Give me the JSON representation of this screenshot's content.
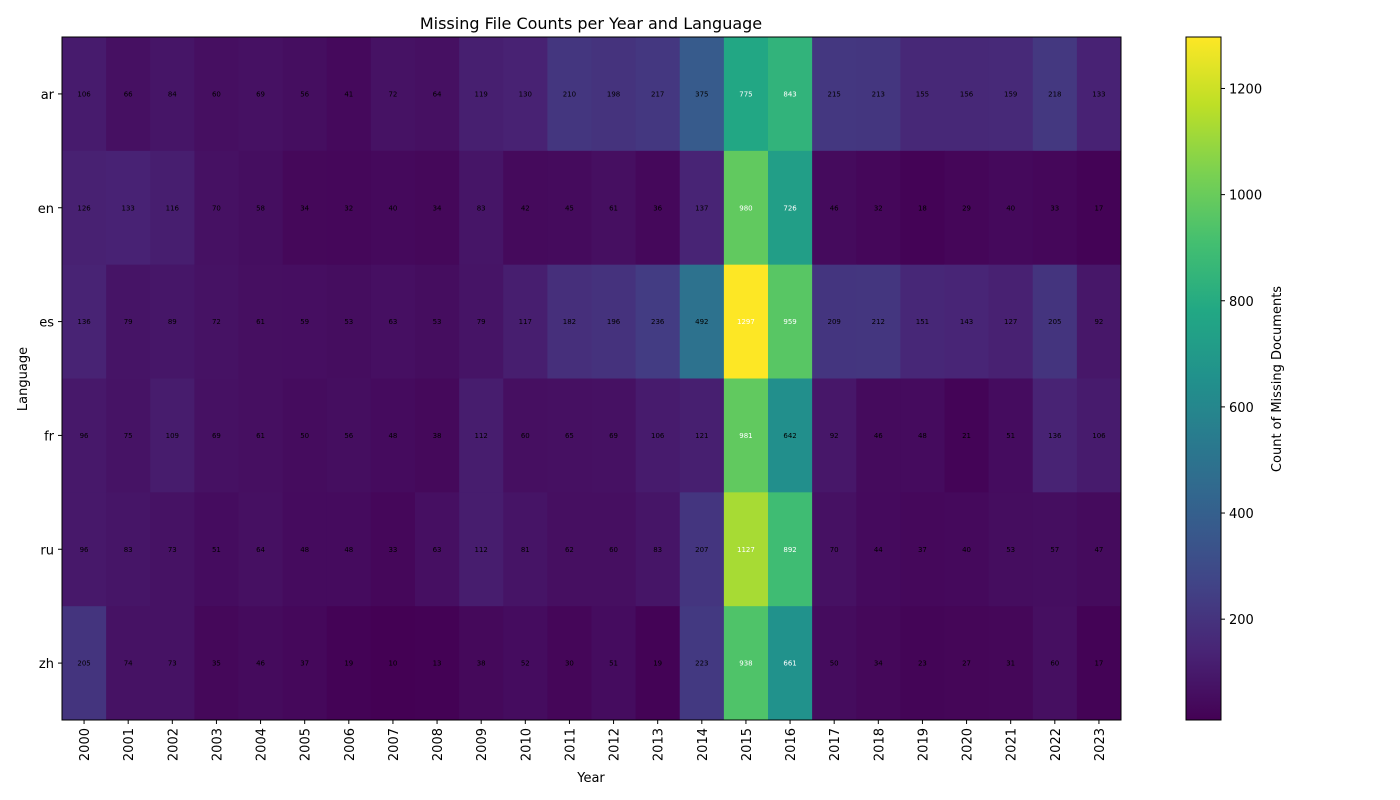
{
  "chart_data": {
    "type": "heatmap",
    "title": "Missing File Counts per Year and Language",
    "xlabel": "Year",
    "ylabel": "Language",
    "x": [
      "2000",
      "2001",
      "2002",
      "2003",
      "2004",
      "2005",
      "2006",
      "2007",
      "2008",
      "2009",
      "2010",
      "2011",
      "2012",
      "2013",
      "2014",
      "2015",
      "2016",
      "2017",
      "2018",
      "2019",
      "2020",
      "2021",
      "2022",
      "2023"
    ],
    "y": [
      "ar",
      "en",
      "es",
      "fr",
      "ru",
      "zh"
    ],
    "values": [
      [
        106,
        66,
        84,
        60,
        69,
        56,
        41,
        72,
        64,
        119,
        130,
        210,
        198,
        217,
        375,
        775,
        843,
        215,
        213,
        155,
        156,
        159,
        218,
        133
      ],
      [
        126,
        133,
        116,
        70,
        58,
        34,
        32,
        40,
        34,
        83,
        42,
        45,
        61,
        36,
        137,
        980,
        726,
        46,
        32,
        18,
        29,
        40,
        33,
        17
      ],
      [
        136,
        79,
        89,
        72,
        61,
        59,
        53,
        63,
        53,
        79,
        117,
        182,
        196,
        236,
        492,
        1297,
        959,
        209,
        212,
        151,
        143,
        127,
        205,
        92
      ],
      [
        96,
        75,
        109,
        69,
        61,
        50,
        56,
        48,
        38,
        112,
        60,
        65,
        69,
        106,
        121,
        981,
        642,
        92,
        46,
        48,
        21,
        51,
        136,
        106
      ],
      [
        96,
        83,
        73,
        51,
        64,
        48,
        48,
        33,
        63,
        112,
        81,
        62,
        60,
        83,
        207,
        1127,
        892,
        70,
        44,
        37,
        40,
        53,
        57,
        47
      ],
      [
        205,
        74,
        73,
        35,
        46,
        37,
        19,
        10,
        13,
        38,
        52,
        30,
        51,
        19,
        223,
        938,
        661,
        50,
        34,
        23,
        27,
        31,
        60,
        17
      ]
    ],
    "colormap": "viridis",
    "colorbar": {
      "label": "Count of Missing Documents",
      "range": [
        10,
        1297
      ],
      "ticks": [
        200,
        400,
        600,
        800,
        1000,
        1200
      ]
    },
    "colors": {
      "low": "#440154",
      "high": "#fde725",
      "text_dark": "#000000",
      "text_light": "#ffffff"
    }
  }
}
